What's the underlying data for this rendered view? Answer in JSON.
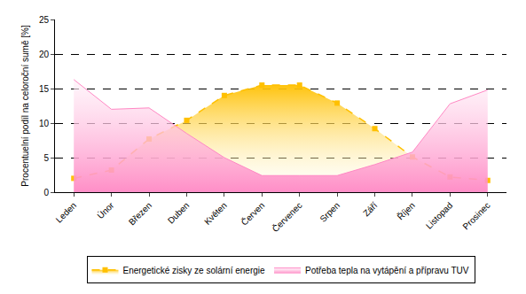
{
  "chart_data": {
    "type": "area",
    "y_label": "Procentuelní podíl na celoroční sumě [%]",
    "categories": [
      "Leden",
      "Únor",
      "Březen",
      "Duben",
      "Květen",
      "Červen",
      "Červenec",
      "Srpen",
      "Září",
      "Říjen",
      "Listopad",
      "Prosinec"
    ],
    "series": [
      {
        "name": "Energetické zisky ze solární energie",
        "color": "#ffc000",
        "marker": "square",
        "line_style": "dashed",
        "values": [
          2,
          3.2,
          7.7,
          10.4,
          14,
          15.5,
          15.5,
          12.9,
          9.2,
          5.1,
          2.2,
          1.7
        ]
      },
      {
        "name": "Potřeba tepla na vytápění a přípravu TUV",
        "color": "#ff88c4",
        "marker": "none",
        "line_style": "solid",
        "values": [
          16.3,
          12,
          12.2,
          8.5,
          5,
          2.4,
          2.4,
          2.4,
          4,
          5.8,
          12.8,
          14.8
        ]
      }
    ],
    "ylim": [
      0,
      25
    ],
    "yticks": [
      0,
      5,
      10,
      15,
      20,
      25
    ],
    "grid": true,
    "legend": "bottom"
  }
}
